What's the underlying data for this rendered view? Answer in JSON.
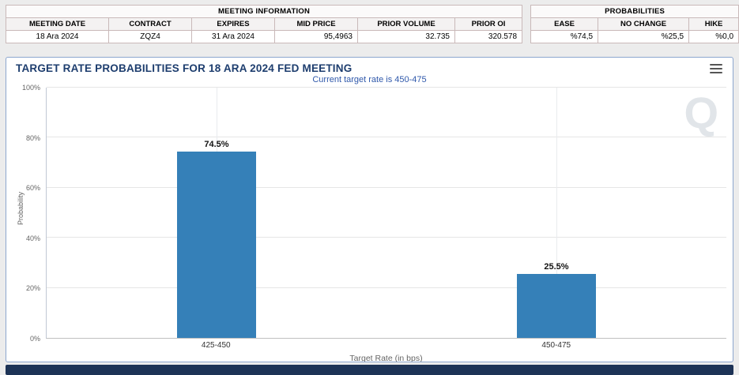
{
  "meeting_info": {
    "title": "MEETING INFORMATION",
    "columns": [
      "MEETING DATE",
      "CONTRACT",
      "EXPIRES",
      "MID PRICE",
      "PRIOR VOLUME",
      "PRIOR OI"
    ],
    "values": [
      "18 Ara 2024",
      "ZQZ4",
      "31 Ara 2024",
      "95,4963",
      "32.735",
      "320.578"
    ]
  },
  "probabilities": {
    "title": "PROBABILITIES",
    "columns": [
      "EASE",
      "NO CHANGE",
      "HIKE"
    ],
    "values": [
      "%74,5",
      "%25,5",
      "%0,0"
    ]
  },
  "chart_data": {
    "type": "bar",
    "title": "TARGET RATE PROBABILITIES FOR 18 ARA 2024 FED MEETING",
    "subtitle": "Current target rate is 450-475",
    "categories": [
      "425-450",
      "450-475"
    ],
    "values": [
      74.5,
      25.5
    ],
    "labels": [
      "74.5%",
      "25.5%"
    ],
    "xlabel": "Target Rate (in bps)",
    "ylabel": "Probability",
    "ylim": [
      0,
      100
    ],
    "yticks": [
      "0%",
      "20%",
      "40%",
      "60%",
      "80%",
      "100%"
    ],
    "legend": "none",
    "grid": true,
    "watermark": "Q"
  },
  "colors": {
    "bar": "#3580b8",
    "title": "#1d3d6e",
    "subtitle": "#3059ab",
    "footer": "#1d3356"
  },
  "menu": {
    "export_menu": "chart context menu"
  }
}
